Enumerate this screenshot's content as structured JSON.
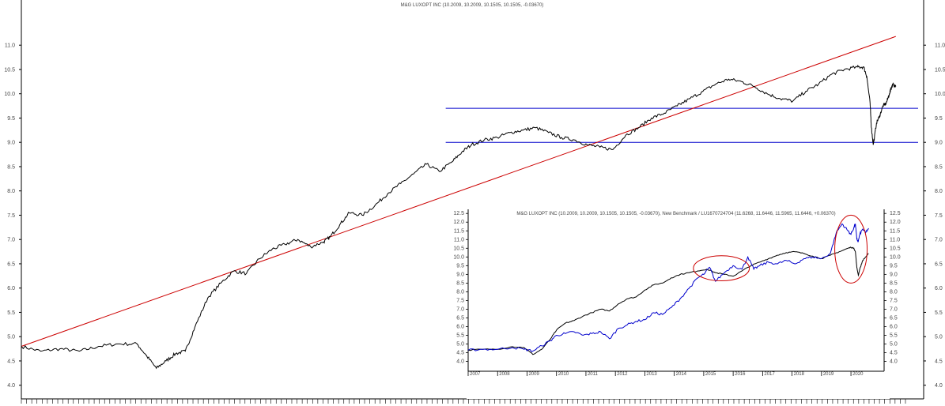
{
  "chart_data": [
    {
      "type": "line",
      "title": "M&G LUXOPT INC (10.2009, 10.2009, 10.1505, 10.1505, -0.03670)",
      "xlabel": "",
      "ylabel": "",
      "x_range": [
        2007.0,
        2020.75
      ],
      "ylim": [
        3.8,
        11.8
      ],
      "yticks": [
        4.0,
        4.5,
        5.0,
        5.5,
        6.0,
        6.5,
        7.0,
        7.5,
        8.0,
        8.5,
        9.0,
        9.5,
        10.0,
        10.5,
        11.0
      ],
      "ytick_labels": [
        "4.0",
        "4.5",
        "5.0",
        "5.5",
        "6.0",
        "6.5",
        "7.0",
        "7.5",
        "8.0",
        "8.5",
        "9.0",
        "9.5",
        "10.0",
        "10.5",
        "11.0"
      ],
      "grid": false,
      "series": [
        {
          "color": "#000000",
          "x": [
            2007.0,
            2007.3,
            2007.6,
            2007.9,
            2008.2,
            2008.5,
            2008.8,
            2008.95,
            2009.1,
            2009.25,
            2009.4,
            2009.55,
            2009.7,
            2009.9,
            2010.1,
            2010.3,
            2010.5,
            2010.7,
            2010.9,
            2011.1,
            2011.3,
            2011.5,
            2011.7,
            2011.8,
            2011.95,
            2012.1,
            2012.3,
            2012.5,
            2012.7,
            2012.9,
            2013.1,
            2013.3,
            2013.5,
            2013.7,
            2013.85,
            2014.0,
            2014.2,
            2014.4,
            2014.6,
            2014.8,
            2015.0,
            2015.2,
            2015.4,
            2015.6,
            2015.8,
            2016.0,
            2016.2,
            2016.4,
            2016.6,
            2016.8,
            2017.0,
            2017.2,
            2017.4,
            2017.6,
            2017.8,
            2018.0,
            2018.2,
            2018.4,
            2018.6,
            2018.8,
            2019.0,
            2019.2,
            2019.4,
            2019.6,
            2019.8,
            2020.0,
            2020.1,
            2020.15,
            2020.2,
            2020.22,
            2020.25,
            2020.3,
            2020.35,
            2020.4,
            2020.45,
            2020.5,
            2020.55,
            2020.6
          ],
          "y": [
            4.8,
            4.7,
            4.75,
            4.7,
            4.8,
            4.85,
            4.85,
            4.6,
            4.35,
            4.5,
            4.65,
            4.7,
            5.2,
            5.8,
            6.1,
            6.35,
            6.3,
            6.6,
            6.8,
            6.9,
            7.0,
            6.85,
            6.95,
            7.05,
            7.3,
            7.55,
            7.5,
            7.7,
            7.95,
            8.15,
            8.35,
            8.55,
            8.4,
            8.6,
            8.8,
            8.95,
            9.05,
            9.1,
            9.2,
            9.25,
            9.3,
            9.2,
            9.1,
            9.05,
            8.95,
            8.9,
            8.85,
            9.15,
            9.3,
            9.5,
            9.6,
            9.75,
            9.9,
            10.05,
            10.2,
            10.3,
            10.25,
            10.15,
            10.0,
            9.9,
            9.85,
            10.05,
            10.2,
            10.4,
            10.5,
            10.55,
            10.55,
            10.35,
            9.8,
            9.3,
            8.95,
            9.4,
            9.55,
            9.75,
            9.8,
            10.0,
            10.2,
            10.15
          ]
        }
      ],
      "hlines": [
        {
          "y": 9.7,
          "x_from": 2013.6,
          "color": "#0000cc"
        },
        {
          "y": 9.0,
          "x_from": 2013.6,
          "color": "#0000cc"
        }
      ],
      "trendline": {
        "x": [
          2007.0,
          2020.6
        ],
        "y": [
          4.8,
          11.18
        ],
        "color": "#cc0000"
      }
    },
    {
      "type": "line",
      "title": "M&G LUXOPT INC (10.2009, 10.2009, 10.1505, 10.1505, -0.03670), New Benchmark / LU1670724704 (11.6268, 11.6446, 11.5965, 11.6446, +0.06370)",
      "xlabel": "",
      "ylabel": "",
      "x_range": [
        2007.0,
        2020.75
      ],
      "ylim": [
        3.8,
        12.6
      ],
      "yticks": [
        4.0,
        4.5,
        5.0,
        5.5,
        6.0,
        6.5,
        7.0,
        7.5,
        8.0,
        8.5,
        9.0,
        9.5,
        10.0,
        10.5,
        11.0,
        11.5,
        12.0,
        12.5
      ],
      "ytick_labels": [
        "4.0",
        "4.5",
        "5.0",
        "5.5",
        "6.0",
        "6.5",
        "7.0",
        "7.5",
        "8.0",
        "8.5",
        "9.0",
        "9.5",
        "10.0",
        "10.5",
        "11.0",
        "11.5",
        "12.0",
        "12.5"
      ],
      "x_labels": [
        "2007",
        "2008",
        "2009",
        "2010",
        "2011",
        "2012",
        "2013",
        "2014",
        "2015",
        "2016",
        "2017",
        "2018",
        "2019",
        "2020"
      ],
      "grid": false,
      "series": [
        {
          "color": "#000000",
          "x": [
            2007.0,
            2007.5,
            2008.0,
            2008.5,
            2008.9,
            2009.2,
            2009.5,
            2009.8,
            2010.0,
            2010.3,
            2010.6,
            2010.9,
            2011.2,
            2011.5,
            2011.8,
            2012.1,
            2012.4,
            2012.7,
            2013.0,
            2013.3,
            2013.6,
            2013.9,
            2014.2,
            2014.5,
            2014.8,
            2015.1,
            2015.4,
            2015.7,
            2016.0,
            2016.3,
            2016.6,
            2016.9,
            2017.2,
            2017.5,
            2017.8,
            2018.1,
            2018.4,
            2018.7,
            2019.0,
            2019.3,
            2019.6,
            2019.9,
            2020.0,
            2020.1,
            2020.15,
            2020.2,
            2020.25,
            2020.3,
            2020.4,
            2020.5,
            2020.6
          ],
          "y": [
            4.65,
            4.7,
            4.7,
            4.85,
            4.8,
            4.4,
            4.7,
            5.3,
            5.8,
            6.2,
            6.35,
            6.6,
            6.8,
            7.0,
            6.9,
            7.3,
            7.6,
            7.7,
            8.1,
            8.4,
            8.5,
            8.8,
            9.0,
            9.1,
            9.2,
            9.3,
            9.1,
            9.0,
            8.9,
            9.2,
            9.5,
            9.7,
            9.9,
            10.1,
            10.25,
            10.3,
            10.2,
            10.05,
            9.9,
            10.1,
            10.3,
            10.5,
            10.55,
            10.5,
            10.3,
            9.4,
            8.95,
            9.3,
            9.8,
            10.0,
            10.2
          ]
        },
        {
          "color": "#0000cc",
          "x": [
            2007.0,
            2007.5,
            2008.0,
            2008.5,
            2008.9,
            2009.2,
            2009.5,
            2009.8,
            2010.0,
            2010.3,
            2010.6,
            2010.9,
            2011.2,
            2011.5,
            2011.8,
            2012.1,
            2012.4,
            2012.7,
            2013.0,
            2013.3,
            2013.6,
            2013.9,
            2014.2,
            2014.5,
            2014.8,
            2015.0,
            2015.2,
            2015.4,
            2015.7,
            2016.0,
            2016.3,
            2016.5,
            2016.7,
            2016.9,
            2017.2,
            2017.5,
            2017.8,
            2018.1,
            2018.4,
            2018.7,
            2019.0,
            2019.3,
            2019.5,
            2019.7,
            2019.9,
            2020.0,
            2020.1,
            2020.15,
            2020.2,
            2020.25,
            2020.3,
            2020.4,
            2020.5,
            2020.6
          ],
          "y": [
            4.65,
            4.7,
            4.7,
            4.8,
            4.7,
            4.6,
            4.9,
            5.2,
            5.5,
            5.6,
            5.7,
            5.5,
            5.6,
            5.7,
            5.3,
            5.9,
            6.1,
            6.3,
            6.4,
            6.8,
            6.7,
            7.1,
            7.6,
            8.2,
            8.8,
            9.0,
            9.4,
            8.6,
            9.1,
            9.5,
            9.3,
            10.0,
            9.3,
            9.5,
            9.7,
            9.6,
            9.8,
            9.6,
            9.9,
            10.0,
            9.9,
            10.2,
            11.4,
            11.9,
            11.5,
            11.3,
            11.7,
            11.9,
            11.0,
            10.9,
            11.3,
            11.6,
            11.4,
            11.65
          ]
        }
      ],
      "annotations": [
        {
          "type": "ellipse",
          "x_center": 2015.6,
          "y_center": 9.35,
          "x_radius": 0.95,
          "y_radius": 0.72,
          "color": "#cc0000"
        },
        {
          "type": "ellipse",
          "x_center": 2020.0,
          "y_center": 10.45,
          "x_radius": 0.55,
          "y_radius": 1.95,
          "color": "#cc0000"
        }
      ]
    }
  ]
}
